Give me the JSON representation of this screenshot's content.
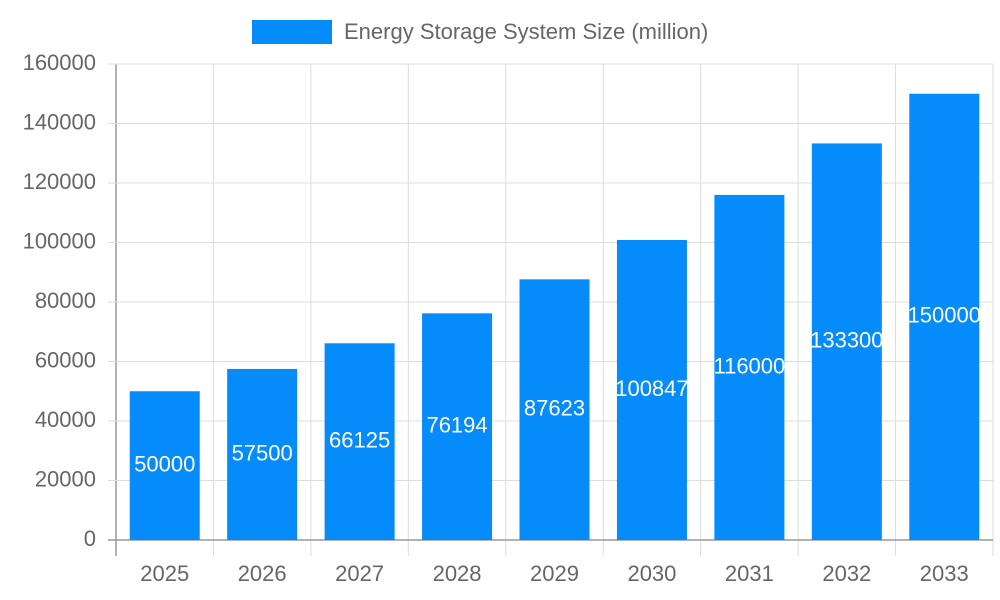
{
  "chart_data": {
    "type": "bar",
    "categories": [
      "2025",
      "2026",
      "2027",
      "2028",
      "2029",
      "2030",
      "2031",
      "2032",
      "2033"
    ],
    "series": [
      {
        "name": "Energy Storage System Size (million)",
        "color": "#068cfa",
        "values": [
          50000,
          57500,
          66125,
          76194,
          87623,
          100847,
          116000,
          133300,
          150000
        ]
      }
    ],
    "ylim": [
      0,
      160000
    ],
    "yticks": [
      0,
      20000,
      40000,
      60000,
      80000,
      100000,
      120000,
      140000,
      160000
    ],
    "grid": true,
    "legend": "top"
  }
}
